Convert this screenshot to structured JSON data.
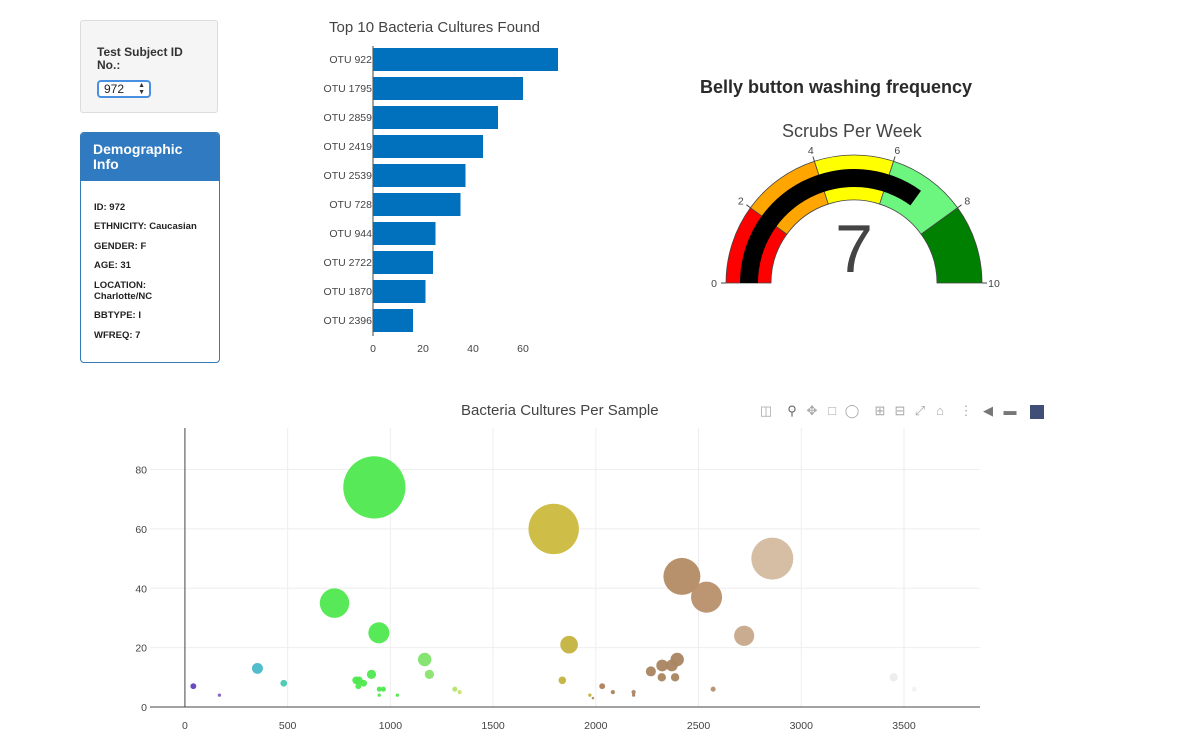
{
  "selector": {
    "label": "Test Subject ID No.:",
    "value": "972"
  },
  "demographics": {
    "title": "Demographic Info",
    "items": [
      "ID: 972",
      "ETHNICITY: Caucasian",
      "GENDER: F",
      "AGE: 31",
      "LOCATION: Charlotte/NC",
      "BBTYPE: I",
      "WFREQ: 7"
    ]
  },
  "bar_chart_title": "Top 10 Bacteria Cultures Found",
  "gauge": {
    "heading": "Belly button washing frequency",
    "subtitle": "Scrubs Per Week",
    "value": 7,
    "value_label": "7"
  },
  "bubble_chart_title": "Bacteria Cultures Per Sample",
  "toolbar": {
    "icons": [
      "camera-icon",
      "zoom-icon",
      "pan-icon",
      "box-select-icon",
      "lasso-select-icon",
      "zoom-in-icon",
      "zoom-out-icon",
      "autoscale-icon",
      "reset-axes-icon",
      "spike-lines-icon",
      "hover-closest-icon",
      "hover-compare-icon",
      "plotly-logo-icon"
    ]
  },
  "colors": {
    "bar": "#0171bd",
    "panel_head": "#2f7ac1",
    "gauge_needle": "#000000"
  },
  "chart_data": [
    {
      "type": "bar",
      "orientation": "horizontal",
      "title": "Top 10 Bacteria Cultures Found",
      "categories": [
        "OTU 922",
        "OTU 1795",
        "OTU 2859",
        "OTU 2419",
        "OTU 2539",
        "OTU 728",
        "OTU 944",
        "OTU 2722",
        "OTU 1870",
        "OTU 2396"
      ],
      "values": [
        74,
        60,
        50,
        44,
        37,
        35,
        25,
        24,
        21,
        16
      ],
      "xticks": [
        "0",
        "20",
        "40",
        "60"
      ],
      "xlim": [
        0,
        74
      ]
    },
    {
      "type": "gauge",
      "title": "Scrubs Per Week",
      "value": 7,
      "range": [
        0,
        10
      ],
      "tick_labels": [
        "0",
        "2",
        "4",
        "6",
        "8",
        "10"
      ],
      "bands": [
        {
          "from": 0,
          "to": 2,
          "color": "#ff0000"
        },
        {
          "from": 2,
          "to": 4,
          "color": "#ffa500"
        },
        {
          "from": 4,
          "to": 6,
          "color": "#ffff00"
        },
        {
          "from": 6,
          "to": 8,
          "color": "#6cf67f"
        },
        {
          "from": 8,
          "to": 10,
          "color": "#008000"
        }
      ],
      "bar_color": "#000000"
    },
    {
      "type": "scatter",
      "title": "Bacteria Cultures Per Sample",
      "xlim": [
        -170,
        3870
      ],
      "ylim": [
        0,
        94
      ],
      "xticks": [
        "0",
        "500",
        "1000",
        "1500",
        "2000",
        "2500",
        "3000",
        "3500"
      ],
      "yticks": [
        "0",
        "20",
        "40",
        "60",
        "80"
      ],
      "points": [
        {
          "x": 922,
          "y": 74,
          "color": "#4ee84e"
        },
        {
          "x": 1795,
          "y": 60,
          "color": "#cbb93d"
        },
        {
          "x": 2859,
          "y": 50,
          "color": "#d4bba0"
        },
        {
          "x": 2419,
          "y": 44,
          "color": "#b38b63"
        },
        {
          "x": 2539,
          "y": 37,
          "color": "#b8906a"
        },
        {
          "x": 728,
          "y": 35,
          "color": "#4ee84e"
        },
        {
          "x": 944,
          "y": 25,
          "color": "#4ee84e"
        },
        {
          "x": 2722,
          "y": 24,
          "color": "#c7a98b"
        },
        {
          "x": 1870,
          "y": 21,
          "color": "#c4b33f"
        },
        {
          "x": 2396,
          "y": 16,
          "color": "#a98560"
        },
        {
          "x": 1167,
          "y": 16,
          "color": "#7fe36b"
        },
        {
          "x": 353,
          "y": 13,
          "color": "#48b8c8"
        },
        {
          "x": 2370,
          "y": 14,
          "color": "#a98560"
        },
        {
          "x": 2323,
          "y": 14,
          "color": "#a98560"
        },
        {
          "x": 2268,
          "y": 12,
          "color": "#a98560"
        },
        {
          "x": 1190,
          "y": 11,
          "color": "#8ae36b"
        },
        {
          "x": 908,
          "y": 11,
          "color": "#4ee84e"
        },
        {
          "x": 2321,
          "y": 10,
          "color": "#a98560"
        },
        {
          "x": 2386,
          "y": 10,
          "color": "#a98560"
        },
        {
          "x": 3450,
          "y": 10,
          "color": "#ececec"
        },
        {
          "x": 833,
          "y": 9,
          "color": "#4ee84e"
        },
        {
          "x": 1837,
          "y": 9,
          "color": "#c4b33f"
        },
        {
          "x": 847,
          "y": 9,
          "color": "#4ee84e"
        },
        {
          "x": 481,
          "y": 8,
          "color": "#48c8b0"
        },
        {
          "x": 870,
          "y": 8,
          "color": "#4ee84e"
        },
        {
          "x": 844,
          "y": 7,
          "color": "#4ee84e"
        },
        {
          "x": 41,
          "y": 7,
          "color": "#6040c0"
        },
        {
          "x": 2031,
          "y": 7,
          "color": "#b07f55"
        },
        {
          "x": 946,
          "y": 6,
          "color": "#4ee84e"
        },
        {
          "x": 966,
          "y": 6,
          "color": "#4ee84e"
        },
        {
          "x": 1314,
          "y": 6,
          "color": "#b5e36b"
        },
        {
          "x": 2571,
          "y": 6,
          "color": "#b8906a"
        },
        {
          "x": 2184,
          "y": 5,
          "color": "#a98560"
        },
        {
          "x": 2083,
          "y": 5,
          "color": "#a98560"
        },
        {
          "x": 2184,
          "y": 4,
          "color": "#a98560"
        },
        {
          "x": 1337,
          "y": 5,
          "color": "#c8e36b"
        },
        {
          "x": 3550,
          "y": 6,
          "color": "#f2f2f2"
        },
        {
          "x": 168,
          "y": 4,
          "color": "#8060c0"
        },
        {
          "x": 1034,
          "y": 4,
          "color": "#4ee84e"
        },
        {
          "x": 946,
          "y": 4,
          "color": "#4ee84e"
        },
        {
          "x": 1971,
          "y": 4,
          "color": "#c4b33f"
        },
        {
          "x": 1986,
          "y": 3,
          "color": "#b08855"
        }
      ]
    }
  ]
}
